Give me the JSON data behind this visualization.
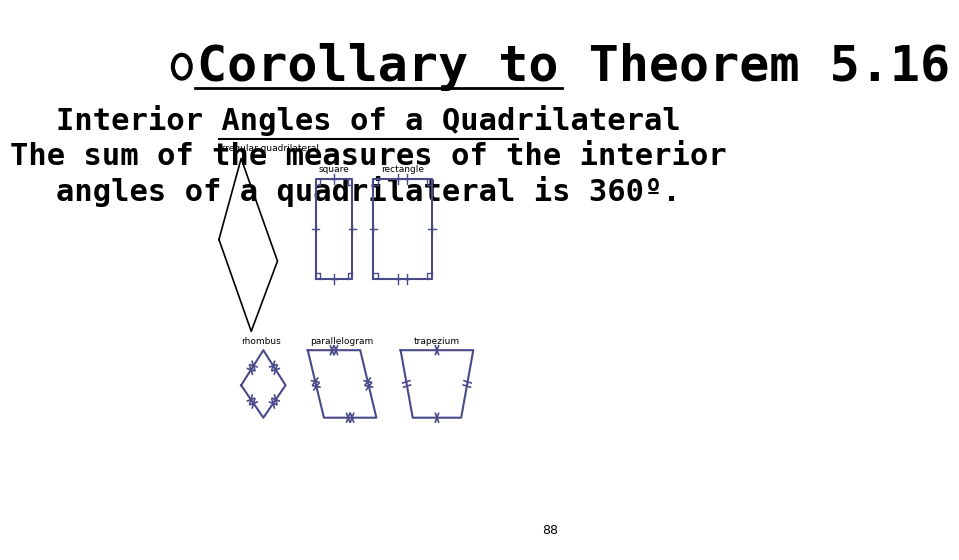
{
  "title": "Corollary to Theorem 5.16",
  "subtitle": "Interior Angles of a Quadrilateral",
  "body_text": "The sum of the measures of the interior\nangles of a quadrilateral is 360º.",
  "page_number": "88",
  "bg_color": "#ffffff",
  "text_color": "#000000",
  "shape_color": "#4a4a8a",
  "title_fontsize": 36,
  "subtitle_fontsize": 22,
  "body_fontsize": 22
}
